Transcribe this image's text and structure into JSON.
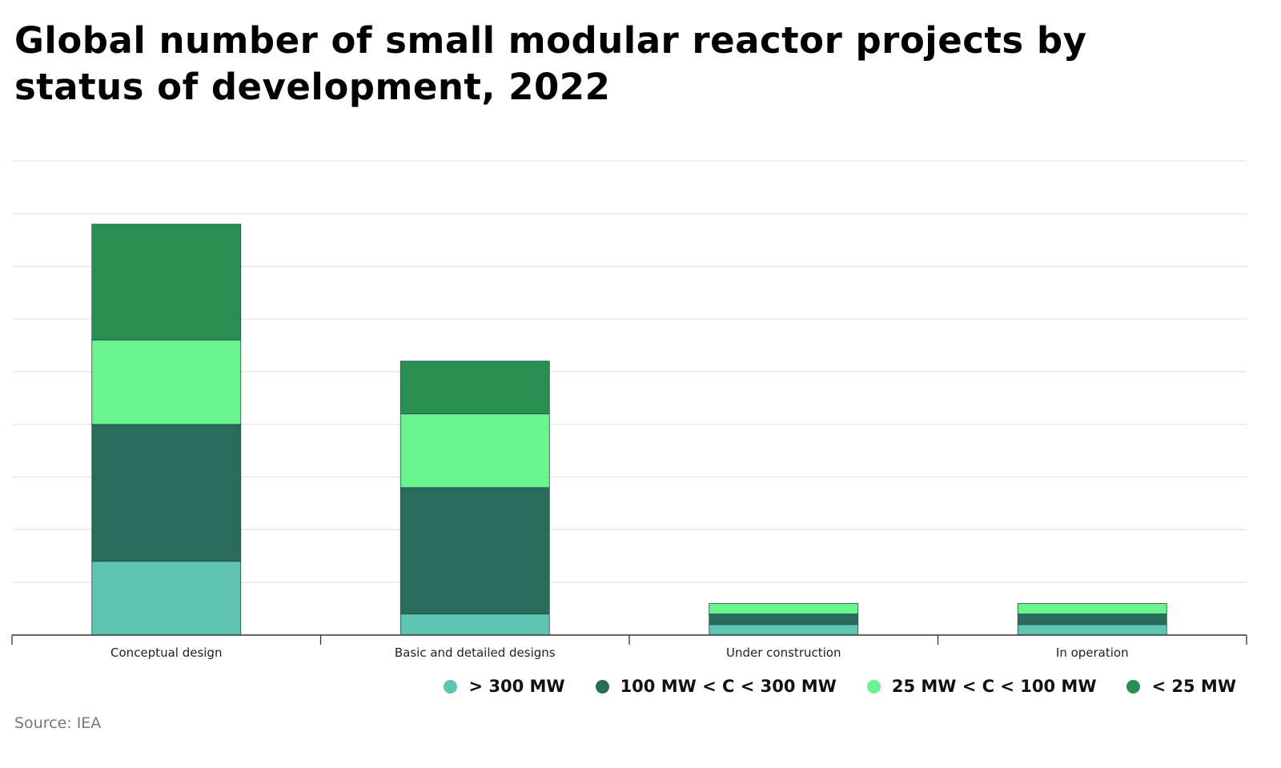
{
  "chart_data": {
    "type": "bar",
    "stacked": true,
    "title": "Global number of small modular reactor projects by status of development, 2022",
    "xlabel": "",
    "ylabel": "",
    "ylim": [
      0,
      45
    ],
    "grid": true,
    "legend_position": "bottom-right",
    "categories": [
      "Conceptual design",
      "Basic and detailed designs",
      "Under construction",
      "In operation"
    ],
    "series": [
      {
        "name": "> 300 MW",
        "color": "#5fc4b2",
        "values": [
          7,
          2,
          1,
          1
        ]
      },
      {
        "name": "100 MW < C < 300 MW",
        "color": "#2b6b5c",
        "values": [
          13,
          12,
          1,
          1
        ]
      },
      {
        "name": "25 MW < C < 100 MW",
        "color": "#69f48f",
        "values": [
          8,
          7,
          1,
          1
        ]
      },
      {
        "name": "< 25 MW",
        "color": "#2a8f52",
        "values": [
          11,
          5,
          0,
          0
        ]
      }
    ]
  },
  "source": "Source: IEA"
}
